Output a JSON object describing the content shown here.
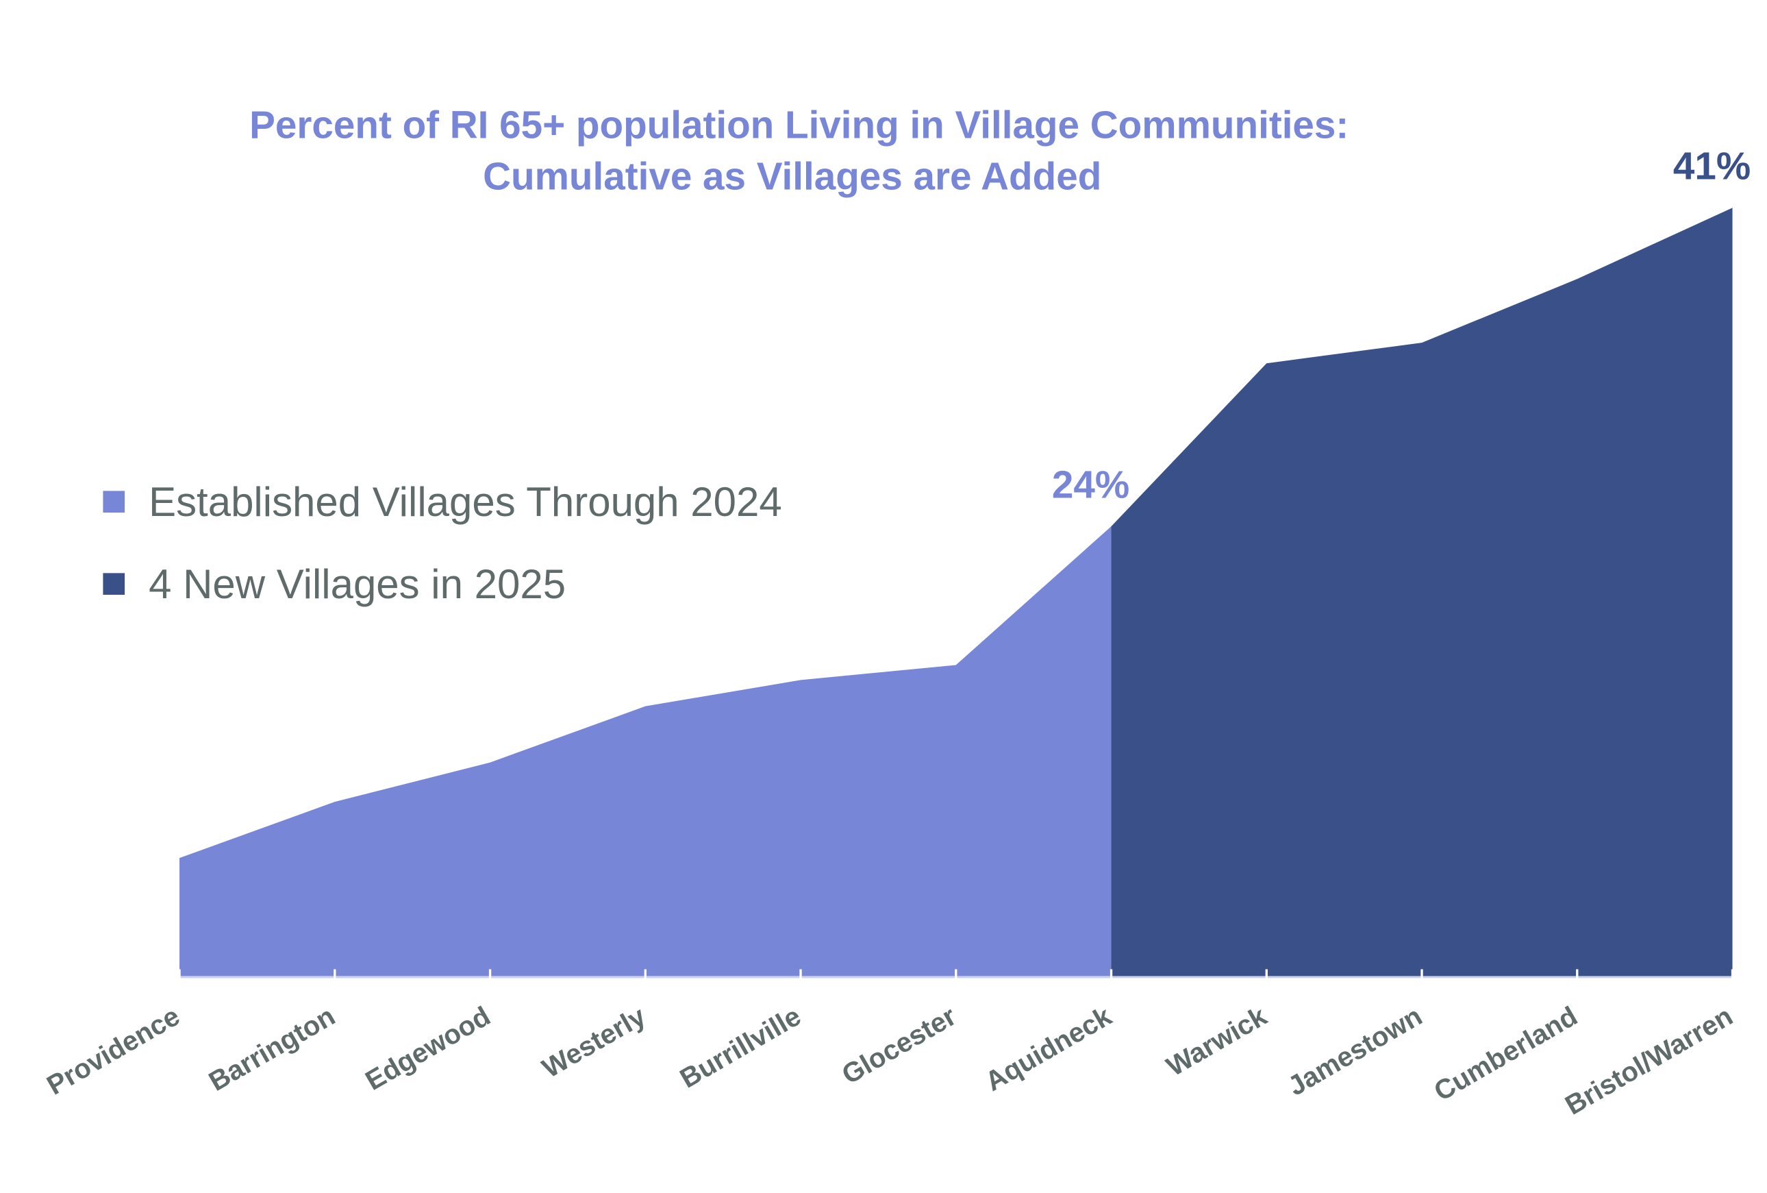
{
  "chart_data": {
    "type": "area",
    "title": "Percent of RI 65+ population Living in Village Communities:",
    "subtitle": "Cumulative as Villages are Added",
    "xlabel": "",
    "ylabel": "",
    "categories": [
      "Providence",
      "Barrington",
      "Edgewood",
      "Westerly",
      "Burrillville",
      "Glocester",
      "Aquidneck",
      "Warwick",
      "Jamestown",
      "Cumberland",
      "Bristol/Warren"
    ],
    "ylim": [
      0,
      41
    ],
    "grid": false,
    "legend_position": "left",
    "series": [
      {
        "name": "Established Villages Through 2024",
        "color": "#7886d7",
        "x": [
          "Providence",
          "Barrington",
          "Edgewood",
          "Westerly",
          "Burrillville",
          "Glocester",
          "Aquidneck"
        ],
        "values": [
          6.3,
          9.3,
          11.4,
          14.4,
          15.8,
          16.6,
          24
        ]
      },
      {
        "name": "4 New Villages in 2025",
        "color": "#3a5088",
        "x": [
          "Aquidneck",
          "Warwick",
          "Jamestown",
          "Cumberland",
          "Bristol/Warren"
        ],
        "values": [
          24,
          32.7,
          33.8,
          37.2,
          41
        ]
      }
    ],
    "data_labels": [
      {
        "category": "Aquidneck",
        "text": "24%",
        "color": "#7886d7"
      },
      {
        "category": "Bristol/Warren",
        "text": "41%",
        "color": "#3a5088"
      }
    ]
  }
}
